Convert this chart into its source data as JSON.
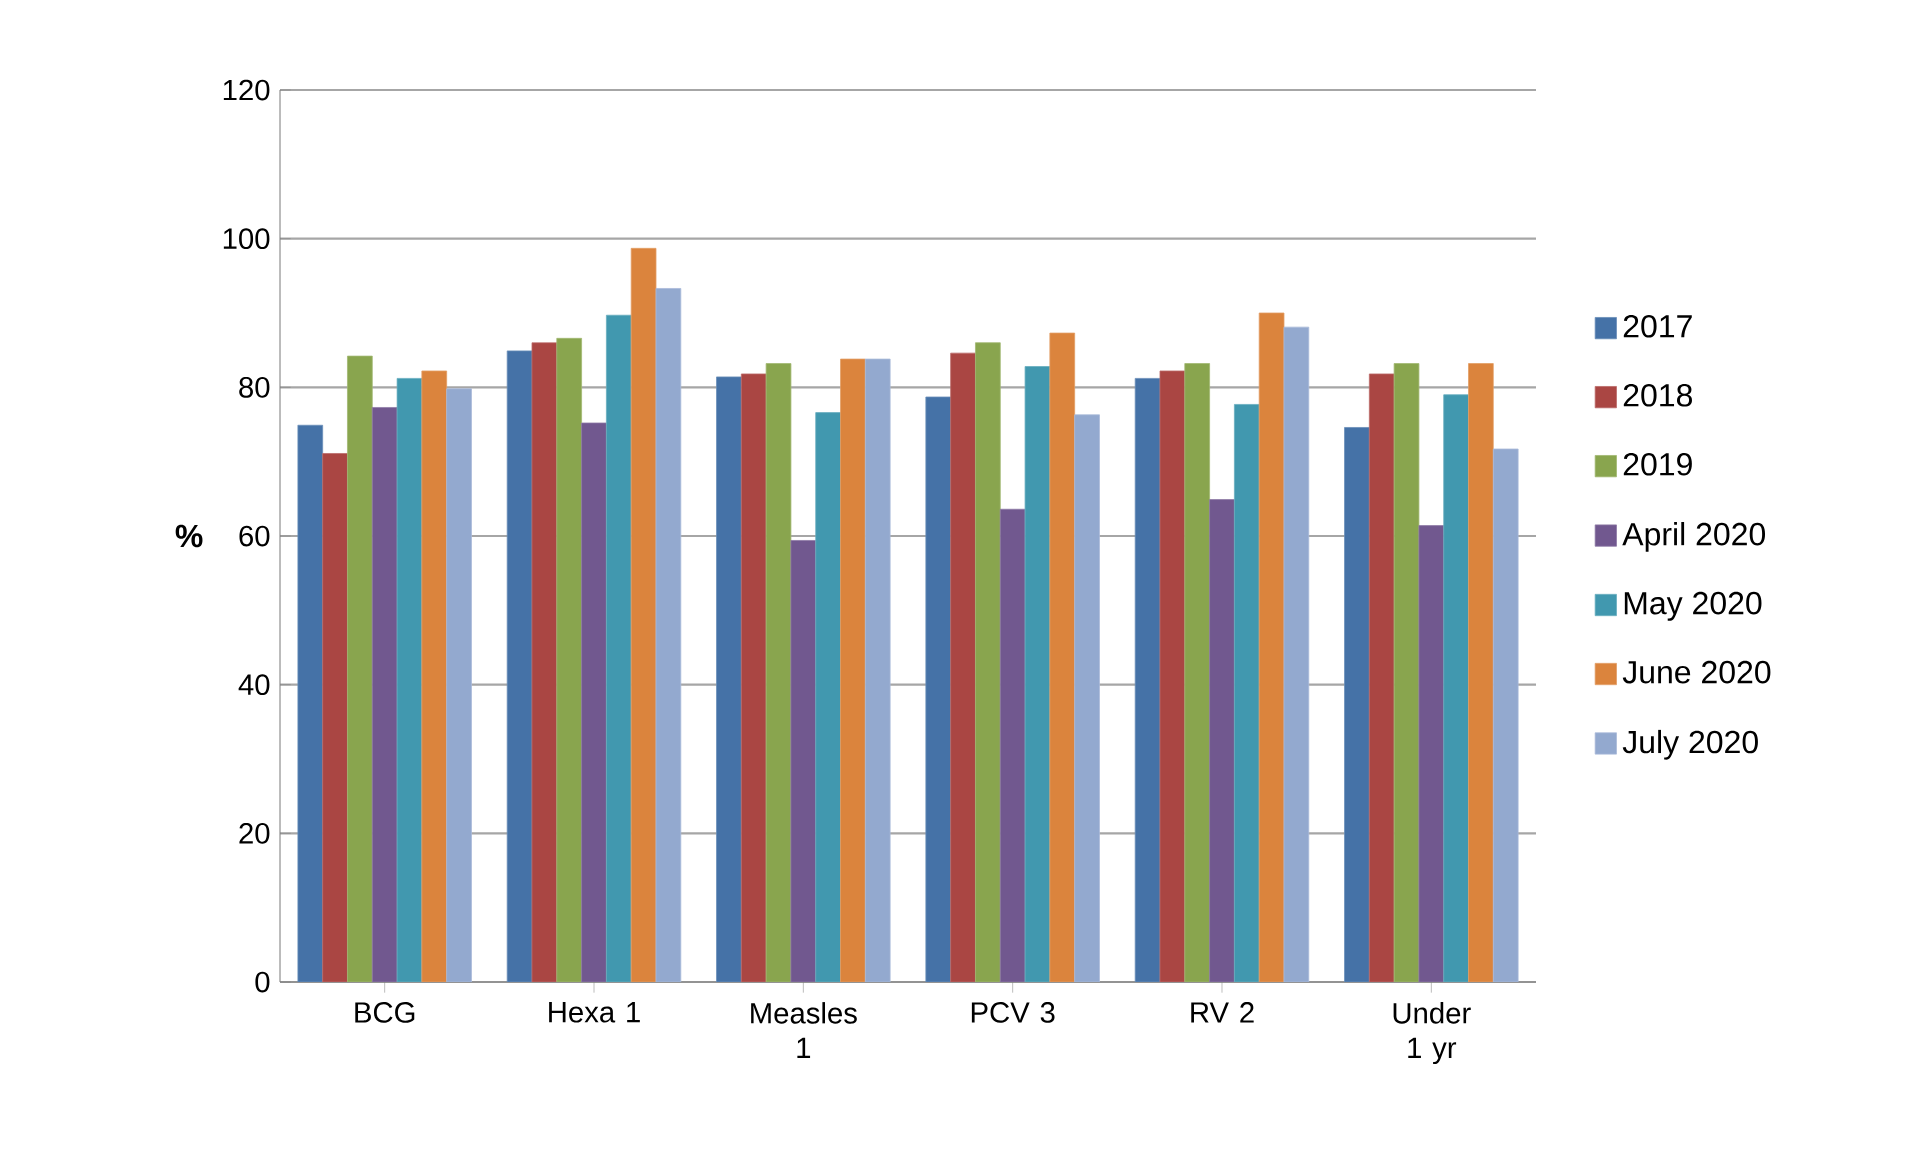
{
  "chart_data": {
    "type": "bar",
    "ylabel": "%",
    "categories": [
      "BCG",
      "Hexa 1",
      "Measles 1",
      "PCV 3",
      "RV 2",
      "Under 1 yr"
    ],
    "series": [
      {
        "name": "2017",
        "color": "#4572a7",
        "values": [
          74.9,
          84.9,
          81.4,
          78.7,
          81.2,
          74.6
        ]
      },
      {
        "name": "2018",
        "color": "#aa4643",
        "values": [
          71.1,
          86.0,
          81.8,
          84.6,
          82.2,
          81.8
        ]
      },
      {
        "name": "2019",
        "color": "#89a54e",
        "values": [
          84.2,
          86.6,
          83.2,
          86.0,
          83.2,
          83.2
        ]
      },
      {
        "name": "April 2020",
        "color": "#71588f",
        "values": [
          77.3,
          75.2,
          59.4,
          63.6,
          64.9,
          61.4
        ]
      },
      {
        "name": "May 2020",
        "color": "#4198af",
        "values": [
          81.2,
          89.7,
          76.6,
          82.8,
          77.7,
          79.0
        ]
      },
      {
        "name": "June 2020",
        "color": "#db843d",
        "values": [
          82.2,
          98.7,
          83.8,
          87.3,
          90.0,
          83.2
        ]
      },
      {
        "name": "July 2020",
        "color": "#93a9cf",
        "values": [
          79.8,
          93.3,
          83.8,
          76.3,
          88.1,
          71.7
        ]
      }
    ],
    "ylim": [
      0,
      120
    ],
    "yticks": [
      0,
      20,
      40,
      60,
      80,
      100,
      120
    ],
    "grid": "y",
    "legend": "right"
  }
}
